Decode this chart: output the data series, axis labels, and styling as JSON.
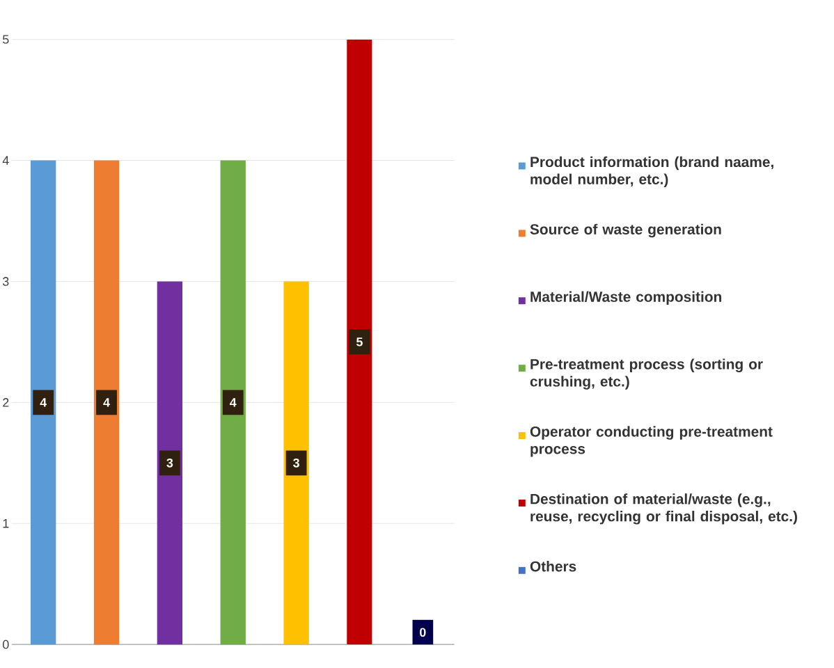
{
  "chart_data": {
    "type": "bar",
    "categories": [
      null,
      null,
      null,
      null,
      null,
      null,
      null
    ],
    "series": [
      {
        "name": "Product information (brand naame, model number, etc.)",
        "color": "#5b9bd5",
        "values": [
          4,
          null,
          null,
          null,
          null,
          null,
          null
        ]
      },
      {
        "name": "Source of waste generation",
        "color": "#ed7d31",
        "values": [
          null,
          4,
          null,
          null,
          null,
          null,
          null
        ]
      },
      {
        "name": "Material/Waste composition",
        "color": "#7030a0",
        "values": [
          null,
          null,
          3,
          null,
          null,
          null,
          null
        ]
      },
      {
        "name": "Pre-treatment process (sorting or crushing, etc.)",
        "color": "#70ad47",
        "values": [
          null,
          null,
          null,
          4,
          null,
          null,
          null
        ]
      },
      {
        "name": "Operator conducting pre-treatment process",
        "color": "#ffc000",
        "values": [
          null,
          null,
          null,
          null,
          3,
          null,
          null
        ]
      },
      {
        "name": "Destination of material/waste (e.g., reuse, recycling or final disposal, etc.)",
        "color": "#c00000",
        "values": [
          null,
          null,
          null,
          null,
          null,
          5,
          null
        ]
      },
      {
        "name": "Others",
        "color": "#4472c4",
        "values": [
          null,
          null,
          null,
          null,
          null,
          null,
          0
        ]
      }
    ],
    "ylim": [
      0,
      5
    ],
    "yticks": [
      0,
      1,
      2,
      3,
      4,
      5
    ],
    "grid": "y",
    "legend": "right",
    "data_labels": true
  }
}
